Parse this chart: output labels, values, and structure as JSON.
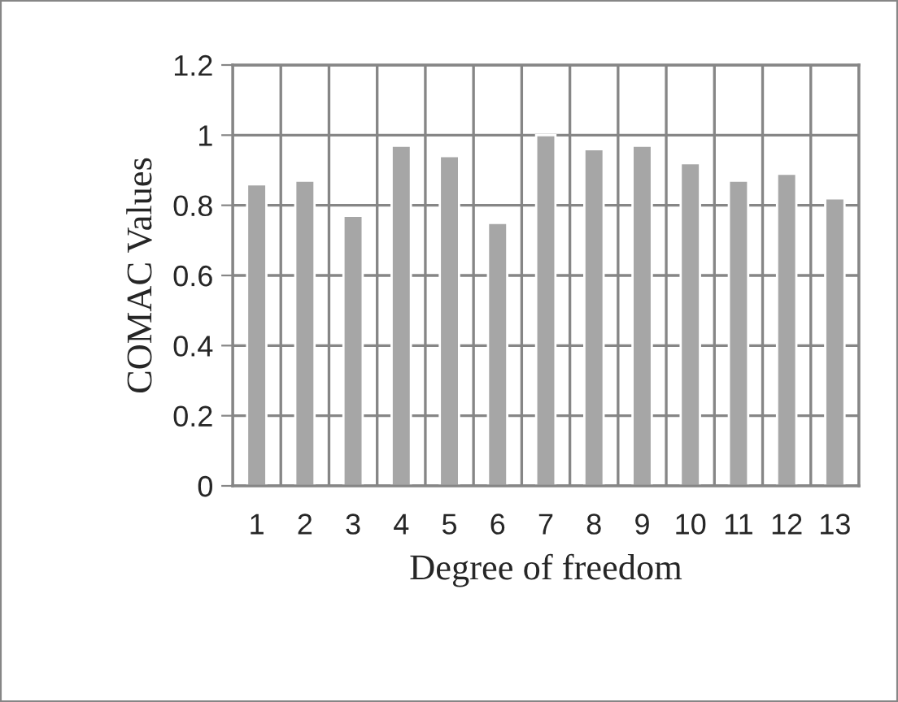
{
  "chart_data": {
    "type": "bar",
    "xlabel": "Degree of freedom",
    "ylabel": "COMAC Values",
    "categories": [
      "1",
      "2",
      "3",
      "4",
      "5",
      "6",
      "7",
      "8",
      "9",
      "10",
      "11",
      "12",
      "13"
    ],
    "values": [
      0.86,
      0.87,
      0.77,
      0.97,
      0.94,
      0.75,
      1.0,
      0.96,
      0.97,
      0.92,
      0.87,
      0.89,
      0.82
    ],
    "color": "#a6a6a6",
    "ylim": [
      0,
      1.2
    ],
    "yticks": [
      {
        "value": 0,
        "label": "0"
      },
      {
        "value": 0.2,
        "label": "0.2"
      },
      {
        "value": 0.4,
        "label": "0.4"
      },
      {
        "value": 0.6,
        "label": "0.6"
      },
      {
        "value": 0.8,
        "label": "0.8"
      },
      {
        "value": 1,
        "label": "1"
      },
      {
        "value": 1.2,
        "label": "1.2"
      }
    ],
    "grid": true,
    "legend": false
  }
}
